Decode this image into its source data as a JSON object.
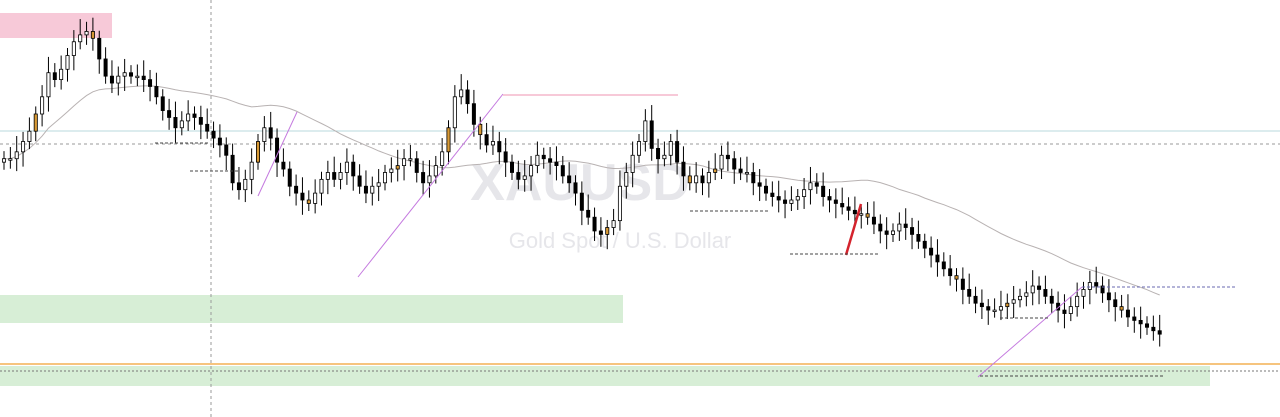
{
  "watermark": {
    "symbol": "XAUUSD",
    "description": "Gold Spot / U.S. Dollar",
    "color": "#e6e6ea"
  },
  "chart_data": {
    "type": "candlestick",
    "title": "",
    "xlabel": "",
    "ylabel": "",
    "ylim": [
      0,
      100
    ],
    "grid": false,
    "colors": {
      "bull_fill": "#ffffff",
      "bear_fill": "#000000",
      "wick": "#000000",
      "highlight_fill": "#d89a36",
      "moving_average": "#b8b2b2",
      "supply_zone": "#f7c9d8",
      "demand_zone": "#d7eed6",
      "orange_level": "#f0a030",
      "teal_level": "#b9d8dd",
      "diagonal": "#c479df",
      "red_marker": "#d4232d",
      "dashed": "#444444"
    },
    "closes": [
      62,
      62,
      64,
      67,
      70,
      75,
      80,
      87,
      85,
      88,
      92,
      96,
      98,
      99,
      97,
      91,
      86,
      84,
      86,
      87,
      86,
      86,
      85,
      83,
      80,
      76,
      74,
      71,
      73,
      75,
      74,
      72,
      70,
      68,
      66,
      63,
      55,
      53,
      56,
      61,
      67,
      71,
      68,
      61,
      59,
      54,
      52,
      50,
      49,
      52,
      56,
      58,
      56,
      58,
      61,
      57,
      54,
      52,
      54,
      55,
      58,
      59,
      60,
      62,
      62,
      58,
      55,
      57,
      60,
      64,
      71,
      80,
      82,
      78,
      72,
      69,
      66,
      67,
      64,
      61,
      58,
      56,
      57,
      60,
      63,
      62,
      61,
      60,
      57,
      55,
      52,
      47,
      45,
      41,
      40,
      42,
      44,
      54,
      58,
      63,
      67,
      73,
      65,
      62,
      63,
      67,
      61,
      57,
      55,
      57,
      55,
      58,
      59,
      63,
      62,
      59,
      58,
      58,
      55,
      54,
      52,
      51,
      50,
      49,
      50,
      51,
      53,
      55,
      54,
      51,
      50,
      49,
      48,
      47,
      46,
      46,
      45,
      43,
      41,
      40,
      41,
      43,
      42,
      40,
      38,
      36,
      34,
      32,
      30,
      28,
      27,
      24,
      22,
      20,
      19,
      18,
      18,
      19,
      20,
      21,
      22,
      23,
      25,
      24,
      22,
      20,
      18,
      17,
      19,
      22,
      24,
      26,
      25,
      23,
      21,
      19,
      18,
      16,
      15,
      14,
      13,
      12,
      11
    ]
  }
}
